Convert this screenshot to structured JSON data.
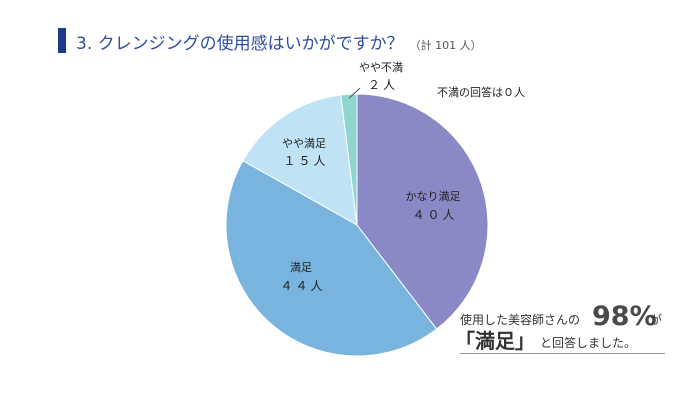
{
  "title": "3. クレンジングの使用感はいかがですか？",
  "title_note": "（計 101 人）",
  "note": "不満の回答は０人",
  "summary": {
    "prefix": "使用した美容師さんの",
    "percent": "98%",
    "ga": "が",
    "highlight": "「満足」",
    "suffix": "と回答しました。"
  },
  "chart_data": {
    "type": "pie",
    "total": 101,
    "slices": [
      {
        "label": "かなり満足",
        "value": 40,
        "value_label": "４０人",
        "color": "#8b88c6"
      },
      {
        "label": "満足",
        "value": 44,
        "value_label": "４４人",
        "color": "#78b4de"
      },
      {
        "label": "やや満足",
        "value": 15,
        "value_label": "１５人",
        "color": "#bfe3f5"
      },
      {
        "label": "やや不満",
        "value": 2,
        "value_label": "２人",
        "color": "#8fd6cf"
      },
      {
        "label": "不満",
        "value": 0,
        "value_label": "０人",
        "color": "#cccccc"
      }
    ]
  }
}
